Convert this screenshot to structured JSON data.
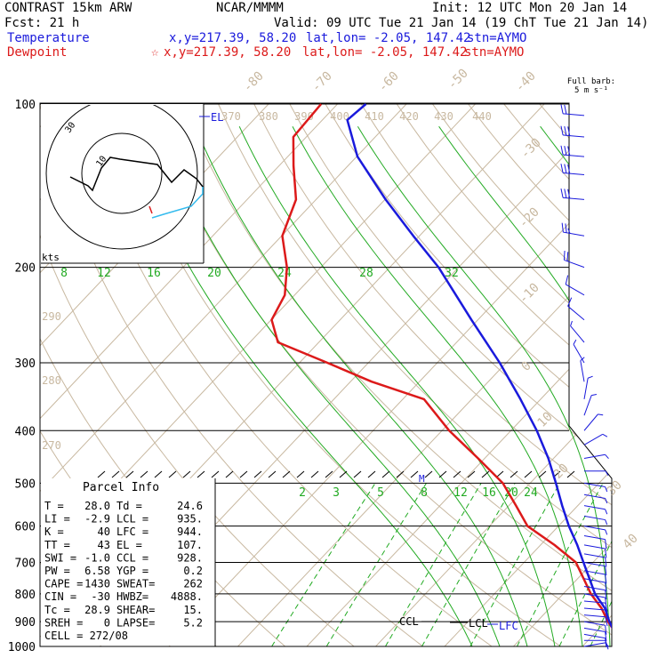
{
  "header": {
    "model": "CONTRAST 15km ARW",
    "center": "NCAR/MMMM",
    "init": "Init: 12 UTC Mon 20 Jan 14",
    "fcst": "Fcst:    21 h",
    "valid": "Valid: 09 UTC Tue 21 Jan 14 (19 ChT Tue 21 Jan 14)",
    "temperature": {
      "label": "Temperature",
      "xy": "x,y=217.39, 58.20",
      "latlon": "lat,lon= -2.05, 147.42",
      "stn": "stn=AYMO"
    },
    "dewpoint": {
      "label": "Dewpoint",
      "marker": "☆",
      "xy": "x,y=217.39, 58.20",
      "latlon": "lat,lon= -2.05, 147.42",
      "stn": "stn=AYMO"
    }
  },
  "barb_legend": {
    "line1": "Full barb:",
    "line2": "5 m s⁻¹"
  },
  "colors": {
    "temperature": "#1a1adc",
    "dewpoint": "#dc1a1a",
    "isotherm": "#c8b8a0",
    "dry_adiabat": "#c8b8a0",
    "moist_adiabat": "#22aa22",
    "mixing_ratio": "#22aa22",
    "isobar": "#000000",
    "hodograph_trace": "#000000",
    "hodograph_low": "#33bbee",
    "wind_barb": "#1a1adc"
  },
  "chart_data": {
    "type": "line",
    "diagram": "skew-T log-p",
    "y_axis": {
      "scale": "log pressure",
      "ticks": [
        100,
        200,
        300,
        400,
        500,
        600,
        700,
        800,
        900,
        1000
      ]
    },
    "isotherm_labels": [
      "-80",
      "-70",
      "-60",
      "-50",
      "-40",
      "-30",
      "-20",
      "-10",
      "0",
      "10",
      "20",
      "30",
      "40"
    ],
    "theta_labels_top": [
      "370",
      "380",
      "390",
      "400",
      "410",
      "420",
      "430",
      "440"
    ],
    "theta_labels_left": [
      "290",
      "280",
      "270"
    ],
    "moist_labels_upper": [
      "8",
      "12",
      "16",
      "20",
      "24",
      "28",
      "32"
    ],
    "mixing_ratio_labels": [
      "2",
      "3",
      "5",
      "8",
      "12",
      "16",
      "20",
      "24"
    ],
    "series": [
      {
        "name": "Temperature",
        "points": [
          [
            1000,
            28.0
          ],
          [
            975,
            25.5
          ],
          [
            950,
            23.5
          ],
          [
            928,
            22.0
          ],
          [
            900,
            20.5
          ],
          [
            850,
            18.0
          ],
          [
            800,
            14.6
          ],
          [
            700,
            8.6
          ],
          [
            650,
            5.3
          ],
          [
            600,
            1.5
          ],
          [
            550,
            -2.3
          ],
          [
            500,
            -6.3
          ],
          [
            450,
            -10.8
          ],
          [
            400,
            -16.3
          ],
          [
            350,
            -23.0
          ],
          [
            300,
            -31.0
          ],
          [
            250,
            -41.0
          ],
          [
            200,
            -53.0
          ],
          [
            175,
            -61.0
          ],
          [
            150,
            -70.0
          ],
          [
            125,
            -80.0
          ],
          [
            107,
            -86.5
          ],
          [
            100,
            -86.0
          ]
        ]
      },
      {
        "name": "Dewpoint",
        "points": [
          [
            1000,
            24.6
          ],
          [
            975,
            24.2
          ],
          [
            950,
            23.3
          ],
          [
            928,
            22.0
          ],
          [
            900,
            20.3
          ],
          [
            850,
            17.5
          ],
          [
            800,
            14.0
          ],
          [
            700,
            7.5
          ],
          [
            650,
            2.0
          ],
          [
            600,
            -4.5
          ],
          [
            550,
            -9.0
          ],
          [
            500,
            -14.0
          ],
          [
            450,
            -21.0
          ],
          [
            400,
            -29.0
          ],
          [
            350,
            -37.0
          ],
          [
            325,
            -47.0
          ],
          [
            300,
            -56.0
          ],
          [
            275,
            -66.0
          ],
          [
            250,
            -70.0
          ],
          [
            225,
            -71.5
          ],
          [
            200,
            -75.0
          ],
          [
            175,
            -80.0
          ],
          [
            150,
            -83.0
          ],
          [
            130,
            -88.0
          ],
          [
            115,
            -92.0
          ],
          [
            100,
            -92.5
          ]
        ]
      }
    ],
    "line_labels": {
      "el": "EL",
      "m": "M",
      "ccl": "CCL",
      "lcl": "LCL",
      "lfc": "LFC"
    },
    "hodograph": {
      "ring_label": "30",
      "inner_label": "10",
      "units": "kts"
    },
    "parcel_info": {
      "title": "Parcel Info",
      "rows": [
        [
          "T   =",
          "28.0",
          "Td =",
          "24.6"
        ],
        [
          "LI  =",
          "-2.9",
          "LCL =",
          "935."
        ],
        [
          "K   =",
          "40",
          "LFC =",
          "944."
        ],
        [
          "TT  =",
          "43",
          "EL  =",
          "107."
        ],
        [
          "SWI =",
          "-1.0",
          "CCL =",
          "928."
        ],
        [
          "PW  =",
          "6.58",
          "YGP =",
          "0.2"
        ],
        [
          "CAPE =",
          "1430",
          "SWEAT=",
          "262"
        ],
        [
          "CIN =",
          "-30",
          "HWBZ=",
          "4888."
        ],
        [
          "Tc  =",
          "28.9",
          "SHEAR=",
          "15."
        ],
        [
          "SREH =",
          "0",
          "LAPSE=",
          "5.2"
        ],
        [
          "CELL = 272/08",
          "",
          "",
          ""
        ]
      ]
    },
    "wind_barbs": {
      "units": "m/s",
      "levels": [
        {
          "p": 1000,
          "dir": 80,
          "spd": 4
        },
        {
          "p": 975,
          "dir": 90,
          "spd": 5
        },
        {
          "p": 950,
          "dir": 100,
          "spd": 6
        },
        {
          "p": 925,
          "dir": 100,
          "spd": 7
        },
        {
          "p": 900,
          "dir": 100,
          "spd": 7
        },
        {
          "p": 875,
          "dir": 95,
          "spd": 7
        },
        {
          "p": 850,
          "dir": 95,
          "spd": 7
        },
        {
          "p": 825,
          "dir": 95,
          "spd": 7
        },
        {
          "p": 800,
          "dir": 100,
          "spd": 7
        },
        {
          "p": 775,
          "dir": 100,
          "spd": 6
        },
        {
          "p": 750,
          "dir": 100,
          "spd": 6
        },
        {
          "p": 725,
          "dir": 100,
          "spd": 6
        },
        {
          "p": 700,
          "dir": 100,
          "spd": 6
        },
        {
          "p": 675,
          "dir": 100,
          "spd": 5
        },
        {
          "p": 650,
          "dir": 100,
          "spd": 5
        },
        {
          "p": 625,
          "dir": 100,
          "spd": 5
        },
        {
          "p": 600,
          "dir": 100,
          "spd": 4
        },
        {
          "p": 575,
          "dir": 100,
          "spd": 4
        },
        {
          "p": 550,
          "dir": 100,
          "spd": 4
        },
        {
          "p": 525,
          "dir": 100,
          "spd": 3
        },
        {
          "p": 500,
          "dir": 100,
          "spd": 3
        },
        {
          "p": 475,
          "dir": 90,
          "spd": 3
        },
        {
          "p": 450,
          "dir": 80,
          "spd": 3
        },
        {
          "p": 425,
          "dir": 60,
          "spd": 3
        },
        {
          "p": 400,
          "dir": 40,
          "spd": 3
        },
        {
          "p": 375,
          "dir": 20,
          "spd": 3
        },
        {
          "p": 350,
          "dir": 10,
          "spd": 3
        },
        {
          "p": 325,
          "dir": 350,
          "spd": 3
        },
        {
          "p": 300,
          "dir": 330,
          "spd": 3
        },
        {
          "p": 275,
          "dir": 320,
          "spd": 4
        },
        {
          "p": 250,
          "dir": 310,
          "spd": 5
        },
        {
          "p": 225,
          "dir": 300,
          "spd": 7
        },
        {
          "p": 200,
          "dir": 290,
          "spd": 10
        },
        {
          "p": 175,
          "dir": 280,
          "spd": 13
        },
        {
          "p": 150,
          "dir": 275,
          "spd": 15
        },
        {
          "p": 135,
          "dir": 275,
          "spd": 16
        },
        {
          "p": 125,
          "dir": 275,
          "spd": 16
        },
        {
          "p": 115,
          "dir": 275,
          "spd": 15
        },
        {
          "p": 105,
          "dir": 275,
          "spd": 12
        }
      ]
    }
  }
}
